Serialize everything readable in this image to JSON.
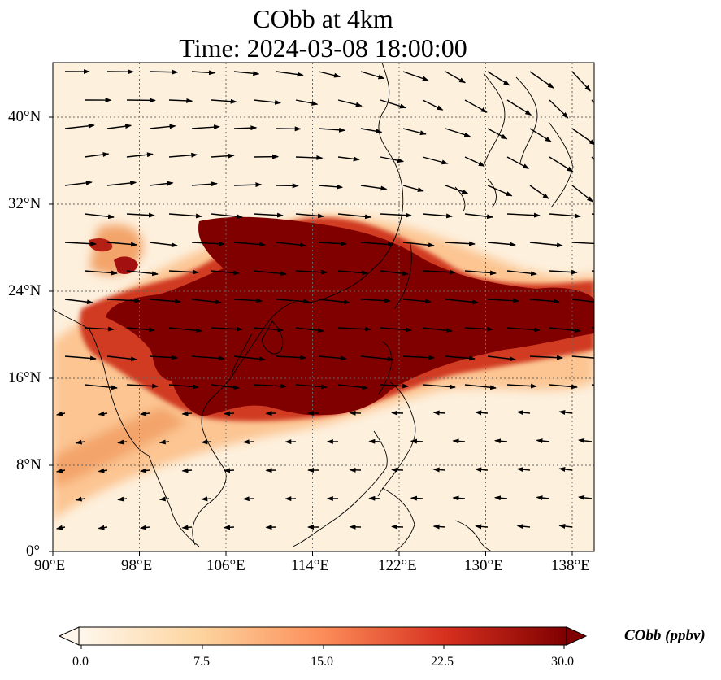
{
  "title": {
    "line1": "CObb at 4km",
    "line2": "Time: 2024-03-08 18:00:00"
  },
  "map": {
    "projection": "PlateCarree",
    "lon_range": [
      90,
      140
    ],
    "lat_range": [
      0,
      45
    ],
    "gridlines": true,
    "coastlines": true,
    "x_ticks": [
      "90°E",
      "98°E",
      "106°E",
      "114°E",
      "122°E",
      "130°E",
      "138°E"
    ],
    "y_ticks": [
      "0°",
      "8°N",
      "16°N",
      "24°N",
      "32°N",
      "40°N"
    ],
    "variable": "CObb",
    "level": "4km",
    "plume": {
      "max_value_ppbv": 30,
      "core_lon_range": [
        98,
        140
      ],
      "core_lat_range": [
        13,
        31
      ]
    },
    "wind_vectors": true,
    "colors": {
      "background": "#fdf0dd",
      "low": "#fde0b4",
      "mid": "#f3a46a",
      "high": "#c0321b",
      "max": "#7a0000",
      "grid": "#666666"
    }
  },
  "colorbar": {
    "label": "CObb (ppbv)",
    "ticks": [
      "0.0",
      "7.5",
      "15.0",
      "22.5",
      "30.0"
    ],
    "min": 0,
    "max": 30,
    "extend": "both",
    "colormap": "OrRd"
  }
}
